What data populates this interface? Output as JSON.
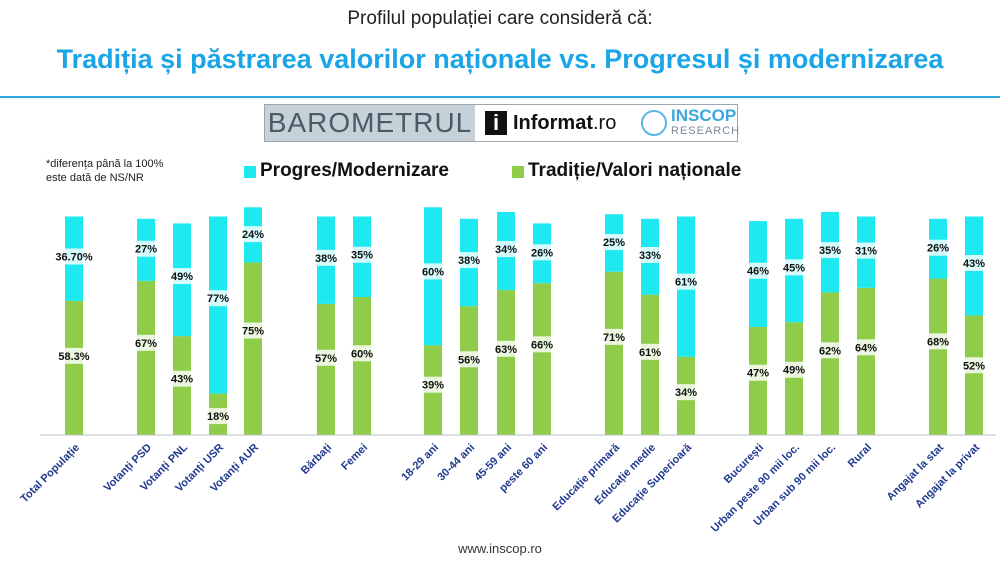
{
  "header": {
    "subtitle": "Profilul populației care consideră că:",
    "title": "Tradiția și păstrarea valorilor naționale vs. Progresul și modernizarea"
  },
  "logo": {
    "barometrul": "BAROMETRUL",
    "informat": "Informat",
    "informat_suffix": ".ro",
    "inscop": "INSCOP",
    "research": "RESEARCH"
  },
  "note": "*diferența până la 100%\neste dată de NS/NR",
  "footer": "www.inscop.ro",
  "colors": {
    "progress": "#1ee8f0",
    "tradition": "#8fcc4a",
    "axis": "#1f3a8f"
  },
  "chart_data": {
    "type": "bar",
    "stacked": true,
    "ylim": [
      0,
      100
    ],
    "grid": false,
    "legend_position": "top",
    "categories": [
      "Total Populație",
      "Votanți PSD",
      "Votanți PNL",
      "Votanți USR",
      "Votanți AUR",
      "Bărbați",
      "Femei",
      "18-29 ani",
      "30-44 ani",
      "45-59 ani",
      "peste 60 ani",
      "Educație primară",
      "Educație medie",
      "Educație Superioară",
      "București",
      "Urban peste 90 mii loc.",
      "Urban sub 90 mii loc.",
      "Rural",
      "Angajat la stat",
      "Angajat la privat"
    ],
    "series": [
      {
        "name": "Tradiție/Valori naționale",
        "color": "#8fcc4a",
        "values": [
          58.3,
          67,
          43,
          18,
          75,
          57,
          60,
          39,
          56,
          63,
          66,
          71,
          61,
          34,
          47,
          49,
          62,
          64,
          68,
          52
        ],
        "labels": [
          "58.3%",
          "67%",
          "43%",
          "18%",
          "75%",
          "57%",
          "60%",
          "39%",
          "56%",
          "63%",
          "66%",
          "71%",
          "61%",
          "34%",
          "47%",
          "49%",
          "62%",
          "64%",
          "68%",
          "52%"
        ]
      },
      {
        "name": "Progres/Modernizare",
        "color": "#1ee8f0",
        "values": [
          36.7,
          27,
          49,
          77,
          24,
          38,
          35,
          60,
          38,
          34,
          26,
          25,
          33,
          61,
          46,
          45,
          35,
          31,
          26,
          43
        ],
        "labels": [
          "36.70%",
          "27%",
          "49%",
          "77%",
          "24%",
          "38%",
          "35%",
          "60%",
          "38%",
          "34%",
          "26%",
          "25%",
          "33%",
          "61%",
          "46%",
          "45%",
          "35%",
          "31%",
          "26%",
          "43%"
        ]
      }
    ]
  }
}
